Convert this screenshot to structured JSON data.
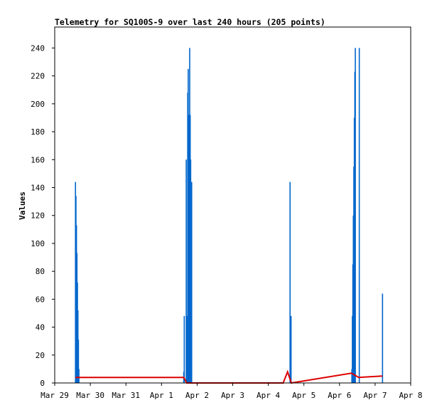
{
  "chart_data": {
    "type": "bar",
    "title": "Telemetry for SQ100S-9 over last 240 hours (205 points)",
    "xlabel": "",
    "ylabel": "Values",
    "xlim": [
      "2024-03-29T00:00",
      "2024-04-08T00:00"
    ],
    "ylim": [
      0,
      255
    ],
    "xticks": [
      {
        "label": "Mar 29",
        "t": "2024-03-29T00:00"
      },
      {
        "label": "Mar 30",
        "t": "2024-03-30T00:00"
      },
      {
        "label": "Mar 31",
        "t": "2024-03-31T00:00"
      },
      {
        "label": "Apr 1",
        "t": "2024-04-01T00:00"
      },
      {
        "label": "Apr 2",
        "t": "2024-04-02T00:00"
      },
      {
        "label": "Apr 3",
        "t": "2024-04-03T00:00"
      },
      {
        "label": "Apr 4",
        "t": "2024-04-04T00:00"
      },
      {
        "label": "Apr 5",
        "t": "2024-04-05T00:00"
      },
      {
        "label": "Apr 6",
        "t": "2024-04-06T00:00"
      },
      {
        "label": "Apr 7",
        "t": "2024-04-07T00:00"
      },
      {
        "label": "Apr 8",
        "t": "2024-04-08T00:00"
      }
    ],
    "yticks": [
      0,
      20,
      40,
      60,
      80,
      100,
      120,
      140,
      160,
      180,
      200,
      220,
      240
    ],
    "grid": false,
    "legend": "none",
    "colors": {
      "bars": "#0066cc",
      "line": "#dd0000",
      "frame": "#000000"
    },
    "series": [
      {
        "type": "bar",
        "values": [
          {
            "t": "2024-03-29T14:00",
            "v": 144
          },
          {
            "t": "2024-03-29T14:20",
            "v": 134
          },
          {
            "t": "2024-03-29T14:40",
            "v": 113
          },
          {
            "t": "2024-03-29T15:00",
            "v": 93
          },
          {
            "t": "2024-03-29T15:20",
            "v": 72
          },
          {
            "t": "2024-03-29T15:40",
            "v": 52
          },
          {
            "t": "2024-03-29T16:00",
            "v": 31
          },
          {
            "t": "2024-03-29T16:20",
            "v": 10
          },
          {
            "t": "2024-04-01T15:00",
            "v": 8
          },
          {
            "t": "2024-04-01T15:20",
            "v": 48
          },
          {
            "t": "2024-04-01T16:40",
            "v": 160
          },
          {
            "t": "2024-04-01T17:00",
            "v": 48
          },
          {
            "t": "2024-04-01T17:40",
            "v": 208
          },
          {
            "t": "2024-04-01T18:00",
            "v": 225
          },
          {
            "t": "2024-04-01T18:20",
            "v": 176
          },
          {
            "t": "2024-04-01T18:40",
            "v": 192
          },
          {
            "t": "2024-04-01T19:00",
            "v": 240
          },
          {
            "t": "2024-04-01T19:20",
            "v": 192
          },
          {
            "t": "2024-04-01T19:40",
            "v": 160
          },
          {
            "t": "2024-04-01T20:00",
            "v": 96
          },
          {
            "t": "2024-04-01T20:20",
            "v": 144
          },
          {
            "t": "2024-04-04T14:40",
            "v": 144
          },
          {
            "t": "2024-04-04T15:00",
            "v": 48
          },
          {
            "t": "2024-04-04T15:20",
            "v": 48
          },
          {
            "t": "2024-04-06T08:20",
            "v": 10
          },
          {
            "t": "2024-04-06T08:40",
            "v": 48
          },
          {
            "t": "2024-04-06T09:00",
            "v": 85
          },
          {
            "t": "2024-04-06T09:20",
            "v": 120
          },
          {
            "t": "2024-04-06T09:40",
            "v": 155
          },
          {
            "t": "2024-04-06T10:00",
            "v": 190
          },
          {
            "t": "2024-04-06T10:20",
            "v": 223
          },
          {
            "t": "2024-04-06T10:40",
            "v": 240
          },
          {
            "t": "2024-04-06T13:20",
            "v": 240
          },
          {
            "t": "2024-04-07T05:00",
            "v": 64
          }
        ]
      },
      {
        "type": "line",
        "values": [
          {
            "t": "2024-03-29T14:00",
            "v": 4
          },
          {
            "t": "2024-03-29T17:00",
            "v": 4
          },
          {
            "t": "2024-04-01T15:00",
            "v": 4
          },
          {
            "t": "2024-04-01T17:00",
            "v": 0
          },
          {
            "t": "2024-04-04T10:00",
            "v": 0
          },
          {
            "t": "2024-04-04T13:00",
            "v": 8
          },
          {
            "t": "2024-04-04T15:30",
            "v": 0
          },
          {
            "t": "2024-04-06T08:00",
            "v": 7
          },
          {
            "t": "2024-04-06T13:00",
            "v": 4
          },
          {
            "t": "2024-04-07T05:00",
            "v": 5
          }
        ]
      }
    ]
  }
}
